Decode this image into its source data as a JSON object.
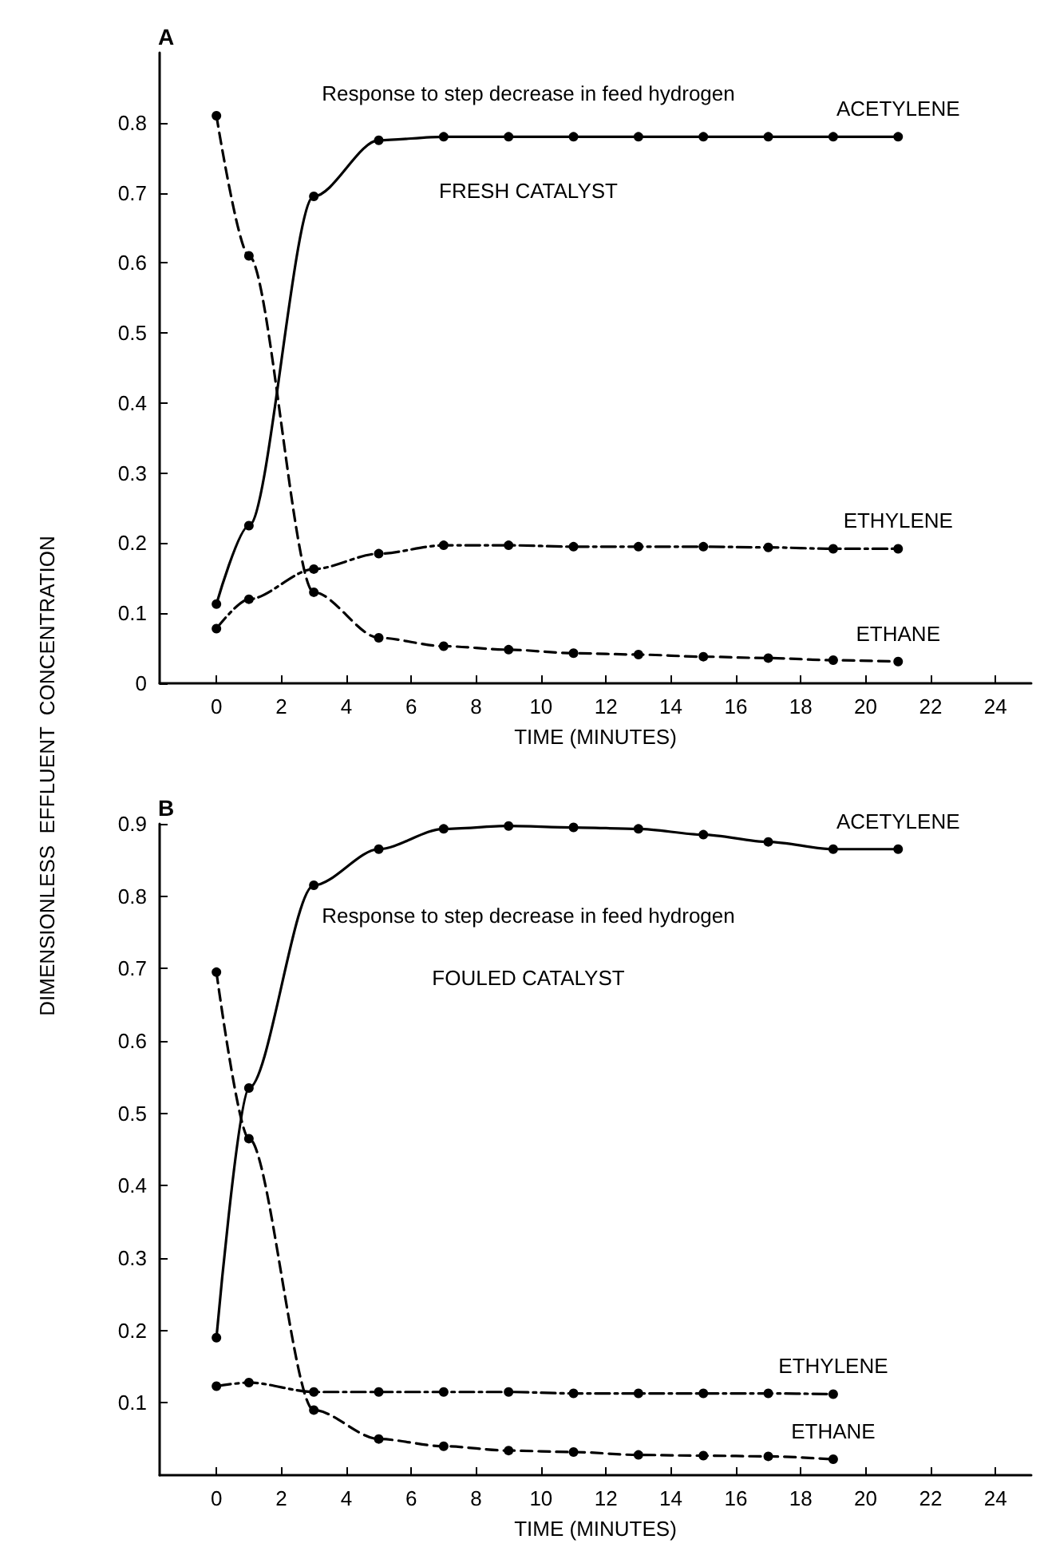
{
  "chart_data": [
    {
      "type": "line",
      "title": "A",
      "xlabel": "TIME (MINUTES)",
      "ylabel": "DIMENSIONLESS  EFFLUENT  CONCENTRATION",
      "annotations": [
        "Response to step decrease in feed hydrogen",
        "FRESH CATALYST"
      ],
      "xlim": [
        -1.75,
        25.1
      ],
      "ylim": [
        0,
        0.9
      ],
      "xticks": [
        0,
        2,
        4,
        6,
        8,
        10,
        12,
        14,
        16,
        18,
        20,
        22,
        24
      ],
      "yticks": [
        0,
        0.1,
        0.2,
        0.3,
        0.4,
        0.5,
        0.6,
        0.7,
        0.8
      ],
      "grid": false,
      "legend": false,
      "marker": "circle",
      "series": [
        {
          "name": "ACETYLENE",
          "color": "#000000",
          "line_style": "solid",
          "x": [
            0,
            1,
            3,
            5,
            7,
            9,
            11,
            13,
            15,
            17,
            19,
            21
          ],
          "values": [
            0.113,
            0.225,
            0.695,
            0.775,
            0.78,
            0.78,
            0.78,
            0.78,
            0.78,
            0.78,
            0.78,
            0.78
          ]
        },
        {
          "name": "ETHYLENE",
          "color": "#000000",
          "line_style": "dashdot",
          "x": [
            0,
            1,
            3,
            5,
            7,
            9,
            11,
            13,
            15,
            17,
            19,
            21
          ],
          "values": [
            0.078,
            0.12,
            0.163,
            0.185,
            0.197,
            0.197,
            0.195,
            0.195,
            0.195,
            0.194,
            0.192,
            0.192
          ]
        },
        {
          "name": "ETHANE",
          "color": "#000000",
          "line_style": "dashed",
          "x": [
            0,
            1,
            3,
            5,
            7,
            9,
            11,
            13,
            15,
            17,
            19,
            21
          ],
          "values": [
            0.81,
            0.61,
            0.13,
            0.065,
            0.053,
            0.048,
            0.043,
            0.041,
            0.038,
            0.036,
            0.033,
            0.031
          ]
        }
      ]
    },
    {
      "type": "line",
      "title": "B",
      "xlabel": "TIME (MINUTES)",
      "annotations": [
        "Response to step decrease in feed hydrogen",
        "FOULED CATALYST"
      ],
      "xlim": [
        -1.75,
        25.1
      ],
      "ylim": [
        0,
        0.9
      ],
      "xticks": [
        0,
        2,
        4,
        6,
        8,
        10,
        12,
        14,
        16,
        18,
        20,
        22,
        24
      ],
      "yticks": [
        0.1,
        0.2,
        0.3,
        0.4,
        0.5,
        0.6,
        0.7,
        0.8,
        0.9
      ],
      "grid": false,
      "legend": false,
      "marker": "circle",
      "series": [
        {
          "name": "ACETYLENE",
          "color": "#000000",
          "line_style": "solid",
          "x": [
            0,
            1,
            3,
            5,
            7,
            9,
            11,
            13,
            15,
            17,
            19,
            21
          ],
          "values": [
            0.19,
            0.535,
            0.815,
            0.865,
            0.893,
            0.897,
            0.895,
            0.893,
            0.885,
            0.875,
            0.865,
            0.865
          ]
        },
        {
          "name": "ETHYLENE",
          "color": "#000000",
          "line_style": "dashdot",
          "x": [
            0,
            1,
            3,
            5,
            7,
            9,
            11,
            13,
            15,
            17,
            19
          ],
          "values": [
            0.123,
            0.128,
            0.115,
            0.115,
            0.115,
            0.115,
            0.113,
            0.113,
            0.113,
            0.113,
            0.112
          ]
        },
        {
          "name": "ETHANE",
          "color": "#000000",
          "line_style": "dashed",
          "x": [
            0,
            1,
            3,
            5,
            7,
            9,
            11,
            13,
            15,
            17,
            19
          ],
          "values": [
            0.695,
            0.465,
            0.09,
            0.05,
            0.04,
            0.034,
            0.032,
            0.028,
            0.027,
            0.026,
            0.022
          ]
        }
      ]
    }
  ]
}
